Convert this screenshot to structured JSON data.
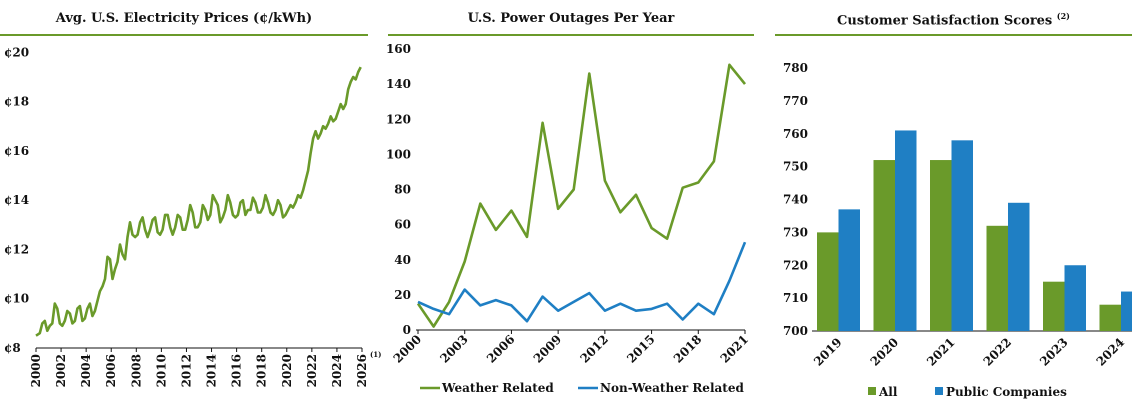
{
  "chart_data": [
    {
      "type": "line",
      "title": "Avg. U.S. Electricity Prices (¢/kWh)",
      "xlabel": "",
      "ylabel": "",
      "x_ticks": [
        "2000",
        "2002",
        "2004",
        "2006",
        "2008",
        "2010",
        "2012",
        "2014",
        "2016",
        "2018",
        "2020",
        "2022",
        "2024",
        "2026"
      ],
      "x_footnote": "(1)",
      "y_ticks": [
        "¢8",
        "¢10",
        "¢12",
        "¢14",
        "¢16",
        "¢18",
        "¢20"
      ],
      "ylim": [
        8,
        20.5
      ],
      "xlim": [
        2000,
        2026
      ],
      "grid": false,
      "series": [
        {
          "color": "#6a9a2a",
          "x": [
            2000.0,
            2000.3,
            2000.5,
            2000.7,
            2000.9,
            2001.1,
            2001.3,
            2001.5,
            2001.7,
            2001.9,
            2002.1,
            2002.3,
            2002.5,
            2002.7,
            2002.9,
            2003.1,
            2003.3,
            2003.5,
            2003.7,
            2003.9,
            2004.1,
            2004.3,
            2004.5,
            2004.7,
            2004.9,
            2005.1,
            2005.3,
            2005.5,
            2005.7,
            2005.9,
            2006.1,
            2006.3,
            2006.5,
            2006.7,
            2006.9,
            2007.1,
            2007.3,
            2007.5,
            2007.7,
            2007.9,
            2008.1,
            2008.3,
            2008.5,
            2008.7,
            2008.9,
            2009.1,
            2009.3,
            2009.5,
            2009.7,
            2009.9,
            2010.1,
            2010.3,
            2010.5,
            2010.7,
            2010.9,
            2011.1,
            2011.3,
            2011.5,
            2011.7,
            2011.9,
            2012.1,
            2012.3,
            2012.5,
            2012.7,
            2012.9,
            2013.1,
            2013.3,
            2013.5,
            2013.7,
            2013.9,
            2014.1,
            2014.3,
            2014.5,
            2014.7,
            2014.9,
            2015.1,
            2015.3,
            2015.5,
            2015.7,
            2015.9,
            2016.1,
            2016.3,
            2016.5,
            2016.7,
            2016.9,
            2017.1,
            2017.3,
            2017.5,
            2017.7,
            2017.9,
            2018.1,
            2018.3,
            2018.5,
            2018.7,
            2018.9,
            2019.1,
            2019.3,
            2019.5,
            2019.7,
            2019.9,
            2020.1,
            2020.3,
            2020.5,
            2020.7,
            2020.9,
            2021.1,
            2021.3,
            2021.5,
            2021.7,
            2021.9,
            2022.1,
            2022.3,
            2022.5,
            2022.7,
            2022.9,
            2023.1,
            2023.3,
            2023.5,
            2023.7,
            2023.9,
            2024.1,
            2024.3,
            2024.5,
            2024.7,
            2024.9,
            2025.1,
            2025.3,
            2025.5,
            2025.7,
            2025.9
          ],
          "values": [
            8.5,
            8.6,
            9.0,
            9.1,
            8.7,
            8.9,
            9.0,
            9.8,
            9.6,
            9.0,
            8.9,
            9.1,
            9.5,
            9.4,
            9.0,
            9.1,
            9.6,
            9.7,
            9.1,
            9.2,
            9.6,
            9.8,
            9.3,
            9.5,
            9.9,
            10.3,
            10.5,
            10.8,
            11.7,
            11.6,
            10.8,
            11.2,
            11.5,
            12.2,
            11.8,
            11.6,
            12.5,
            13.1,
            12.6,
            12.5,
            12.6,
            13.1,
            13.3,
            12.8,
            12.5,
            12.8,
            13.2,
            13.3,
            12.7,
            12.6,
            12.8,
            13.4,
            13.4,
            12.9,
            12.6,
            12.9,
            13.4,
            13.3,
            12.8,
            12.8,
            13.2,
            13.8,
            13.5,
            12.9,
            12.9,
            13.1,
            13.8,
            13.6,
            13.2,
            13.4,
            14.2,
            14.0,
            13.8,
            13.1,
            13.3,
            13.6,
            14.2,
            13.9,
            13.4,
            13.3,
            13.4,
            13.9,
            14.0,
            13.4,
            13.6,
            13.6,
            14.1,
            13.9,
            13.5,
            13.5,
            13.7,
            14.2,
            13.9,
            13.5,
            13.4,
            13.6,
            14.0,
            13.8,
            13.3,
            13.4,
            13.6,
            13.8,
            13.7,
            13.9,
            14.2,
            14.1,
            14.4,
            14.8,
            15.2,
            15.9,
            16.5,
            16.8,
            16.5,
            16.7,
            17.0,
            16.9,
            17.1,
            17.4,
            17.2,
            17.3,
            17.6,
            17.9,
            17.7,
            17.9,
            18.5,
            18.8,
            19.0,
            18.9,
            19.2,
            19.4
          ]
        }
      ]
    },
    {
      "type": "line",
      "title": "U.S. Power Outages Per Year",
      "xlabel": "",
      "ylabel": "",
      "x_ticks": [
        "2000",
        "2003",
        "2006",
        "2009",
        "2012",
        "2015",
        "2018",
        "2021"
      ],
      "y_ticks": [
        "0",
        "20",
        "40",
        "60",
        "80",
        "100",
        "120",
        "140",
        "160"
      ],
      "ylim": [
        0,
        160
      ],
      "xlim": [
        2000,
        2021
      ],
      "grid": false,
      "legend_position": "bottom",
      "x": [
        2000,
        2001,
        2002,
        2003,
        2004,
        2005,
        2006,
        2007,
        2008,
        2009,
        2010,
        2011,
        2012,
        2013,
        2014,
        2015,
        2016,
        2017,
        2018,
        2019,
        2020,
        2021
      ],
      "series": [
        {
          "name": "Weather Related",
          "color": "#6a9a2a",
          "values": [
            15,
            2,
            16,
            39,
            72,
            57,
            68,
            53,
            118,
            69,
            80,
            146,
            85,
            67,
            77,
            58,
            52,
            81,
            84,
            96,
            151,
            140
          ]
        },
        {
          "name": "Non-Weather Related",
          "color": "#1f7fc4",
          "values": [
            16,
            12,
            9,
            23,
            14,
            17,
            14,
            5,
            19,
            11,
            16,
            21,
            11,
            15,
            11,
            12,
            15,
            6,
            15,
            9,
            28,
            50
          ]
        }
      ]
    },
    {
      "type": "bar",
      "title": "Customer Satisfaction Scores",
      "title_footnote": "(2)",
      "xlabel": "",
      "ylabel": "",
      "categories": [
        "2019",
        "2020",
        "2021",
        "2022",
        "2023",
        "2024"
      ],
      "y_ticks": [
        "700",
        "710",
        "720",
        "730",
        "740",
        "750",
        "760",
        "770",
        "780"
      ],
      "ylim": [
        700,
        780
      ],
      "grid": false,
      "legend_position": "bottom",
      "series": [
        {
          "name": "All",
          "color": "#6a9a2a",
          "values": [
            730,
            752,
            752,
            732,
            715,
            708
          ]
        },
        {
          "name": "Public Companies",
          "color": "#1f7fc4",
          "values": [
            737,
            761,
            758,
            739,
            720,
            712
          ]
        }
      ]
    }
  ]
}
